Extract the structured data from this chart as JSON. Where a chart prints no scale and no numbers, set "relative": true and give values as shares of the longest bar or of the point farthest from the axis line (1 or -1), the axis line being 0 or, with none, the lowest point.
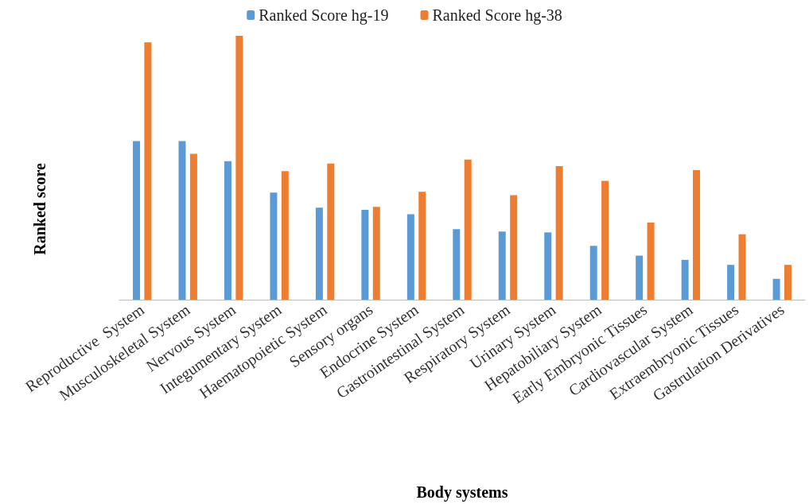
{
  "chart_data": {
    "type": "bar",
    "relative": true,
    "xlabel": "Body systems",
    "ylabel": "Ranked score",
    "legend": "top",
    "grid": false,
    "categories": [
      "Reproductive  System",
      "Musculoskeletal System",
      "Nervous System",
      "Integumentary System",
      "Haematopoietic System",
      "Sensory organs",
      "Endocrine System",
      "Gastrointestinal System",
      "Respiratory System",
      "Urinary System",
      "Hepatobiliary System",
      "Early Embryonic Tissues",
      "Cardiovascular System",
      "Extraembryonic Tissues",
      "Gastrulation Derivatives"
    ],
    "series": [
      {
        "name": "Ranked Score hg-19",
        "color": "#5b9bd5",
        "values": [
          0.601,
          0.601,
          0.525,
          0.406,
          0.349,
          0.34,
          0.324,
          0.267,
          0.258,
          0.255,
          0.204,
          0.167,
          0.151,
          0.132,
          0.079
        ]
      },
      {
        "name": "Ranked Score hg-38",
        "color": "#ed7d31",
        "values": [
          0.975,
          0.553,
          1,
          0.487,
          0.516,
          0.352,
          0.409,
          0.531,
          0.396,
          0.506,
          0.45,
          0.292,
          0.491,
          0.248,
          0.132
        ]
      }
    ]
  }
}
